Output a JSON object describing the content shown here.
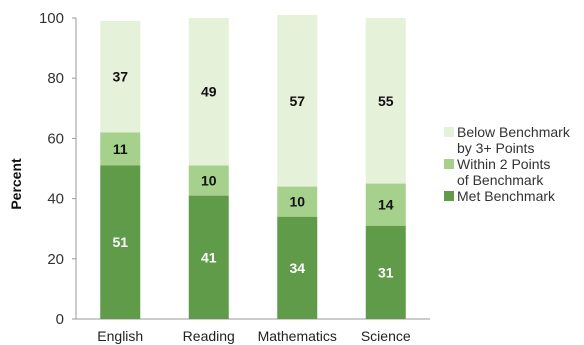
{
  "chart_data": {
    "type": "bar",
    "stacked": true,
    "categories": [
      "English",
      "Reading",
      "Mathematics",
      "Science"
    ],
    "series": [
      {
        "name": "Met Benchmark",
        "values": [
          51,
          41,
          34,
          31
        ],
        "color": "#5f9b48",
        "label_color": "#ffffff"
      },
      {
        "name": "Within 2 Points of Benchmark",
        "values": [
          11,
          10,
          10,
          14
        ],
        "color": "#a6d18c",
        "label_color": "#111111"
      },
      {
        "name": "Below Benchmark by 3+ Points",
        "values": [
          37,
          49,
          57,
          55
        ],
        "color": "#e6f1da",
        "label_color": "#111111"
      }
    ],
    "ylabel": "Percent",
    "ylim": [
      0,
      100
    ],
    "yticks": [
      0,
      20,
      40,
      60,
      80,
      100
    ],
    "grid": false,
    "legend_position": "right",
    "legend": [
      {
        "lines": [
          "Below Benchmark",
          "by 3+ Points"
        ],
        "color": "#e6f1da"
      },
      {
        "lines": [
          "Within 2 Points",
          "of Benchmark"
        ],
        "color": "#a6d18c"
      },
      {
        "lines": [
          "Met Benchmark"
        ],
        "color": "#5f9b48"
      }
    ]
  }
}
